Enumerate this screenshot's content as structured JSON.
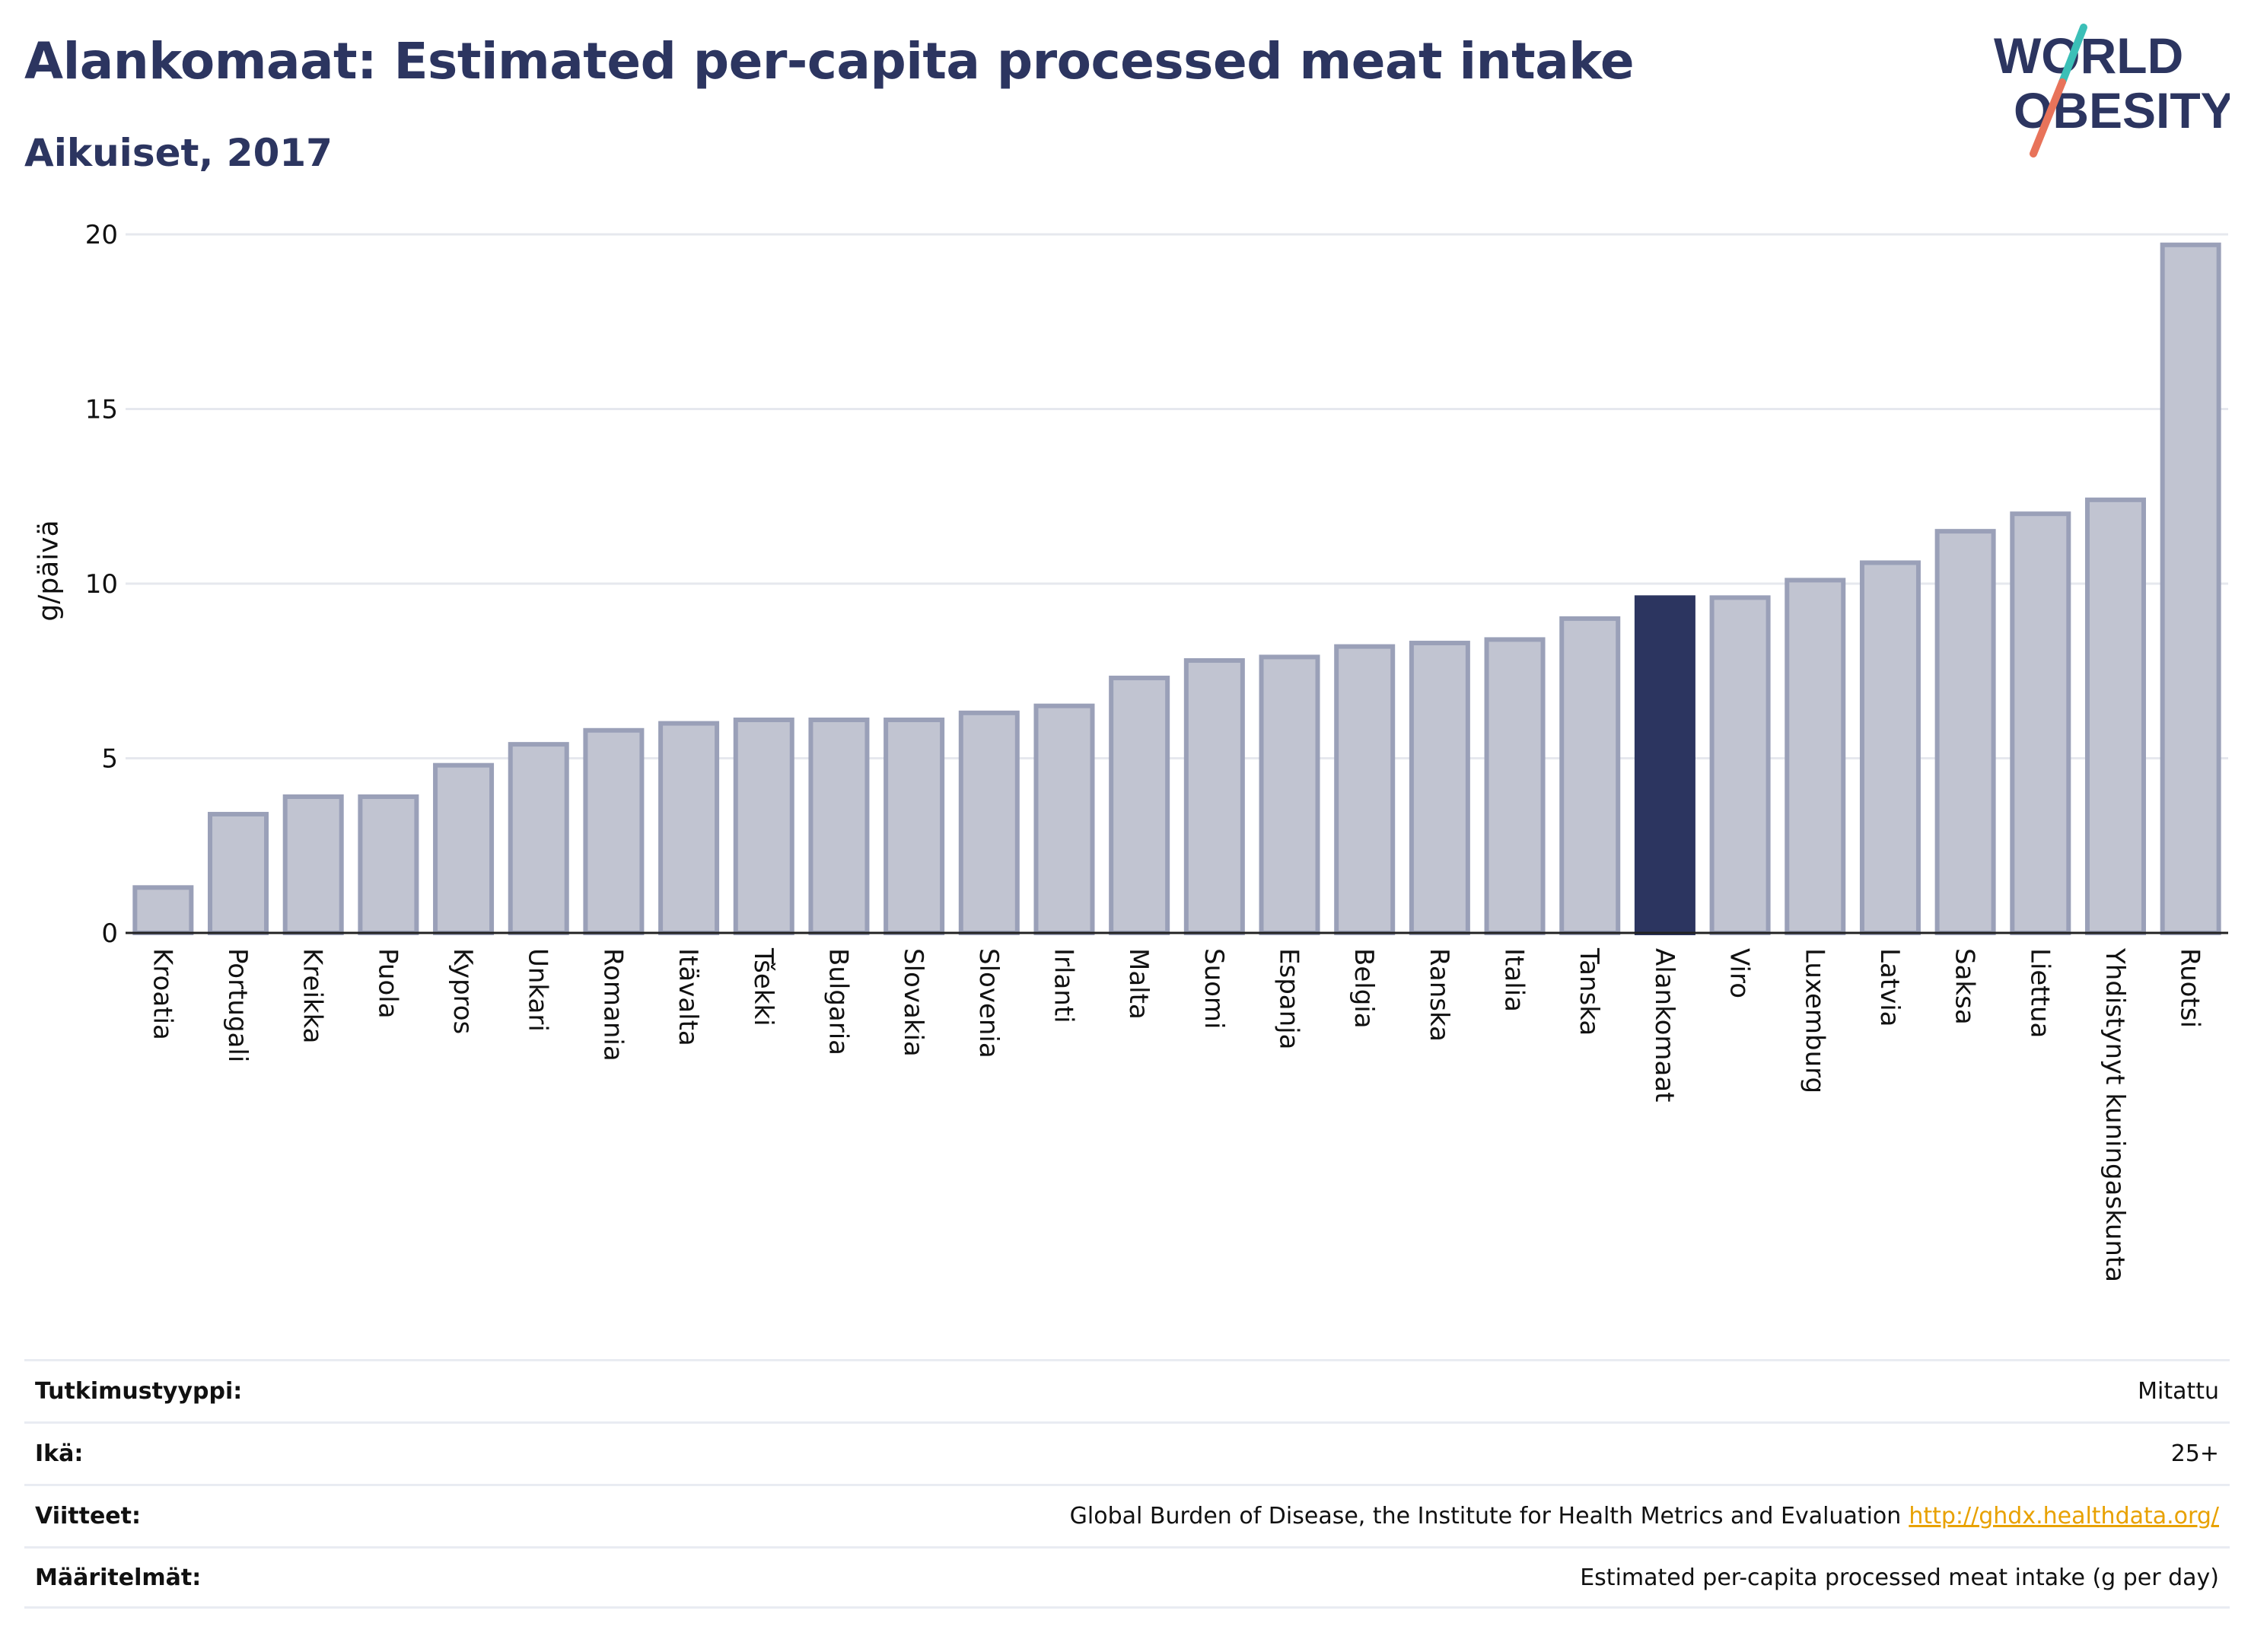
{
  "header": {
    "title": "Alankomaat: Estimated per-capita processed meat intake",
    "subtitle": "Aikuiset, 2017",
    "logo_text_line1": "WORLD",
    "logo_text_line2": "OBESITY"
  },
  "chart_data": {
    "type": "bar",
    "ylabel": "g/päivä",
    "ylim": [
      0,
      20
    ],
    "yticks": [
      0,
      5,
      10,
      15,
      20
    ],
    "grid": true,
    "categories": [
      "Kroatia",
      "Portugali",
      "Kreikka",
      "Puola",
      "Kypros",
      "Unkari",
      "Romania",
      "Itävalta",
      "Tšekki",
      "Bulgaria",
      "Slovakia",
      "Slovenia",
      "Irlanti",
      "Malta",
      "Suomi",
      "Espanja",
      "Belgia",
      "Ranska",
      "Italia",
      "Tanska",
      "Alankomaat",
      "Viro",
      "Luxemburg",
      "Latvia",
      "Saksa",
      "Liettua",
      "Yhdistynyt kuningaskunta",
      "Ruotsi"
    ],
    "values": [
      1.3,
      3.4,
      3.9,
      3.9,
      4.8,
      5.4,
      5.8,
      6.0,
      6.1,
      6.1,
      6.1,
      6.3,
      6.5,
      7.3,
      7.8,
      7.9,
      8.2,
      8.3,
      8.4,
      9.0,
      9.6,
      9.6,
      10.1,
      10.6,
      11.5,
      12.0,
      12.4,
      19.7
    ],
    "highlight": "Alankomaat",
    "colors": {
      "bar": "#c1c4d1",
      "bar_border": "#9aa0b8",
      "highlight": "#2c3560",
      "grid": "#e6e8ee",
      "axis": "#222222"
    }
  },
  "info": [
    {
      "label": "Tutkimustyyppi:",
      "value": "Mitattu"
    },
    {
      "label": "Ikä:",
      "value": "25+"
    },
    {
      "label": "Viitteet:",
      "value": "Global Burden of Disease, the Institute for Health Metrics and Evaluation",
      "link": "http://ghdx.healthdata.org/"
    },
    {
      "label": "Määritelmät:",
      "value": "Estimated per-capita processed meat intake (g per day)"
    }
  ]
}
